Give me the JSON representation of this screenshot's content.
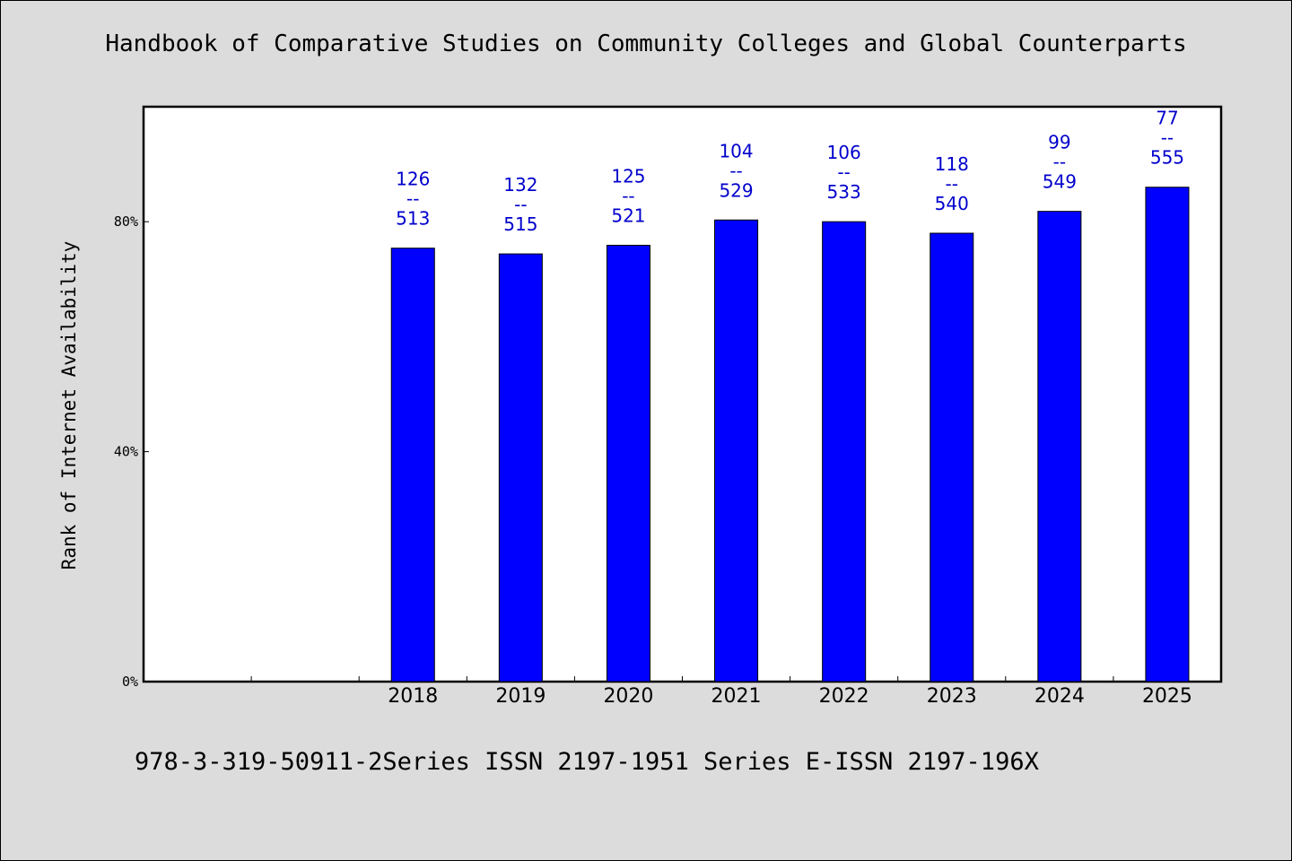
{
  "chart_data": {
    "type": "bar",
    "title": "Handbook of Comparative Studies on Community Colleges and Global Counterparts",
    "ylabel": "Rank of Internet Availability",
    "xlabel": "",
    "ylim": [
      0,
      100
    ],
    "yticks": [
      0,
      40,
      80
    ],
    "ytick_labels": [
      "0%",
      "40%",
      "80%"
    ],
    "categories": [
      "",
      "",
      "2018",
      "2019",
      "2020",
      "2021",
      "2022",
      "2023",
      "2024",
      "2025"
    ],
    "values": [
      null,
      null,
      75.4,
      74.4,
      75.9,
      80.3,
      80.0,
      78.0,
      81.8,
      86.0
    ],
    "labels": [
      null,
      null,
      [
        "126",
        "--",
        "513"
      ],
      [
        "132",
        "--",
        "515"
      ],
      [
        "125",
        "--",
        "521"
      ],
      [
        "104",
        "--",
        "529"
      ],
      [
        "106",
        "--",
        "533"
      ],
      [
        "118",
        "--",
        "540"
      ],
      [
        "99",
        "--",
        "549"
      ],
      [
        "77",
        "--",
        "555"
      ]
    ],
    "bar_color": "#0000ff",
    "label_color": "#0000cc",
    "grid": false
  },
  "footer": "978-3-319-50911-2Series ISSN 2197-1951 Series E-ISSN 2197-196X"
}
